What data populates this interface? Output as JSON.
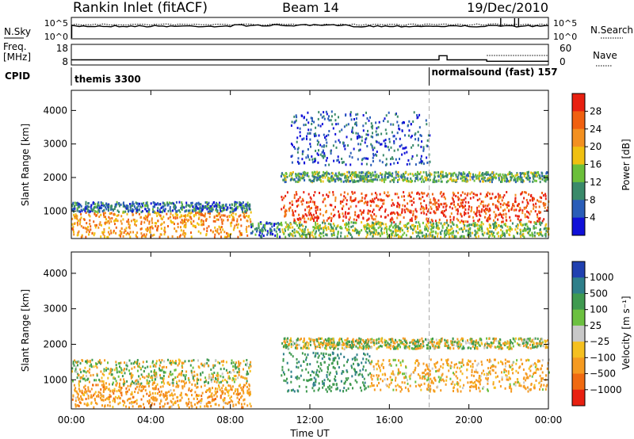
{
  "header": {
    "station": "Rankin Inlet (fitACF)",
    "beam": "Beam 14",
    "date": "19/Dec/2010"
  },
  "noise_panel": {
    "left_label": "N.Sky",
    "right_label": "N.Search",
    "left_ticks": [
      "10^5",
      "10^0"
    ],
    "right_ticks": [
      "10^5",
      "10^0"
    ]
  },
  "freq_panel": {
    "left_label_1": "Freq.",
    "left_label_2": "[MHz]",
    "right_label": "Nave",
    "left_ticks": [
      "18",
      "8"
    ],
    "right_ticks": [
      "60",
      "0"
    ]
  },
  "cpid_panel": {
    "label": "CPID",
    "modes": [
      {
        "name": "themis 3300",
        "start_hour": 0
      },
      {
        "name": "normalsound (fast) 157",
        "start_hour": 18.0
      }
    ]
  },
  "x_axis": {
    "label": "Time UT",
    "ticks": [
      "00:00",
      "04:00",
      "08:00",
      "12:00",
      "16:00",
      "20:00",
      "00:00"
    ],
    "tick_hours": [
      0,
      4,
      8,
      12,
      16,
      20,
      24
    ],
    "range": [
      0,
      24
    ]
  },
  "y_axis": {
    "label": "Slant Range [km]",
    "ticks": [
      "1000",
      "2000",
      "3000",
      "4000"
    ],
    "tick_values": [
      1000,
      2000,
      3000,
      4000
    ],
    "range": [
      180,
      4600
    ]
  },
  "power_colorbar": {
    "label": "Power [dB]",
    "ticks": [
      "4",
      "8",
      "12",
      "16",
      "20",
      "24",
      "28"
    ],
    "colors": [
      "#1010d8",
      "#2a5db8",
      "#3a8a6a",
      "#6bbf3a",
      "#f0c010",
      "#f39020",
      "#f06010",
      "#e82010"
    ]
  },
  "velocity_colorbar": {
    "label": "Velocity [m s⁻¹]",
    "ticks": [
      "1000",
      "500",
      "100",
      "25",
      "−25",
      "−100",
      "−500",
      "−1000"
    ],
    "colors": [
      "#2040b0",
      "#2e7f8a",
      "#3f9a50",
      "#6cc040",
      "#c8c8c8",
      "#f5c020",
      "#f59a20",
      "#f06a10",
      "#e82010"
    ]
  },
  "chart_data": [
    {
      "type": "heatmap",
      "title": "Power",
      "quantity": "Power [dB]",
      "xlabel": "Time UT",
      "ylabel": "Slant Range [km]",
      "x_range_hours": [
        0,
        24
      ],
      "y_range_km": [
        180,
        4600
      ],
      "scatter_regions": [
        {
          "t_start": 0.0,
          "t_end": 9.0,
          "r_min": 250,
          "r_max": 1000,
          "power_db": 22
        },
        {
          "t_start": 0.0,
          "t_end": 9.0,
          "r_min": 1000,
          "r_max": 1300,
          "power_db": 8
        },
        {
          "t_start": 9.0,
          "t_end": 10.5,
          "r_min": 250,
          "r_max": 700,
          "power_db": 8
        },
        {
          "t_start": 10.5,
          "t_end": 24.0,
          "r_min": 700,
          "r_max": 1600,
          "power_db": 28
        },
        {
          "t_start": 10.5,
          "t_end": 24.0,
          "r_min": 250,
          "r_max": 700,
          "power_db": 14
        },
        {
          "t_start": 10.5,
          "t_end": 24.0,
          "r_min": 1900,
          "r_max": 2200,
          "power_db": 12
        },
        {
          "t_start": 11.0,
          "t_end": 18.0,
          "r_min": 2400,
          "r_max": 4000,
          "power_db": 6
        }
      ]
    },
    {
      "type": "heatmap",
      "title": "Velocity",
      "quantity": "Velocity [m s-1]",
      "xlabel": "Time UT",
      "ylabel": "Slant Range [km]",
      "x_range_hours": [
        0,
        24
      ],
      "y_range_km": [
        180,
        4600
      ],
      "scatter_regions": [
        {
          "t_start": 0.0,
          "t_end": 9.0,
          "r_min": 250,
          "r_max": 900,
          "velocity_ms": -300
        },
        {
          "t_start": 0.0,
          "t_end": 9.0,
          "r_min": 900,
          "r_max": 1600,
          "velocity_ms": 0
        },
        {
          "t_start": 10.5,
          "t_end": 15.0,
          "r_min": 700,
          "r_max": 1800,
          "velocity_ms": 400
        },
        {
          "t_start": 15.0,
          "t_end": 24.0,
          "r_min": 700,
          "r_max": 1600,
          "velocity_ms": -200
        },
        {
          "t_start": 10.5,
          "t_end": 24.0,
          "r_min": 1900,
          "r_max": 2200,
          "velocity_ms": 0
        }
      ]
    },
    {
      "type": "line",
      "title": "N.Sky",
      "x_range_hours": [
        0,
        24
      ],
      "ylim": [
        1,
        100000
      ],
      "log_scale": true
    },
    {
      "type": "line",
      "title": "Freq.",
      "x": [
        0,
        18.5,
        18.5,
        18.9,
        18.9,
        20.9,
        20.9,
        24
      ],
      "values": [
        10.5,
        10.5,
        12.5,
        12.5,
        10.5,
        10.5,
        9.8,
        9.8
      ],
      "ylim": [
        8,
        18
      ]
    }
  ]
}
